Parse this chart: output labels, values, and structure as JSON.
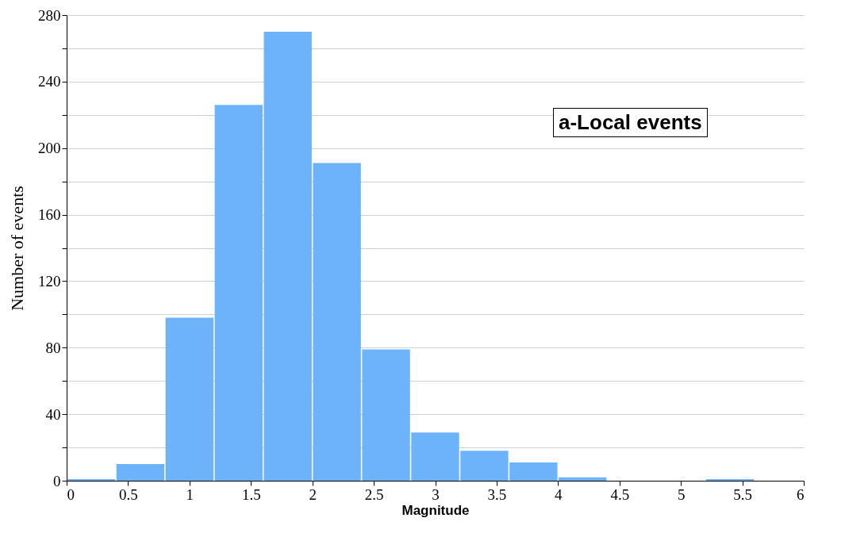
{
  "chart_data": {
    "type": "histogram",
    "xlabel": "Magnitude",
    "ylabel": "Number of events",
    "annotations": [
      "a-Local events"
    ],
    "bins": [
      0,
      0.4,
      0.8,
      1.2,
      1.6,
      2.0,
      2.4,
      2.8,
      3.2,
      3.6,
      4.0,
      4.4,
      4.8,
      5.2,
      5.6,
      6.0
    ],
    "values": [
      1,
      10,
      98,
      226,
      270,
      191,
      79,
      29,
      18,
      11,
      2,
      0,
      0,
      1,
      0
    ],
    "color": "#6db3fb",
    "xlim": [
      0,
      6
    ],
    "xticks": [
      0,
      0.5,
      1,
      1.5,
      2,
      2.5,
      3,
      3.5,
      4,
      4.5,
      5,
      5.5,
      6
    ],
    "ylim": [
      0,
      280
    ],
    "yticks": [
      0,
      {
        "value": 20,
        "label": null
      },
      40,
      {
        "value": 60,
        "label": null
      },
      80,
      {
        "value": 100,
        "label": null
      },
      120,
      {
        "value": 140,
        "label": null
      },
      160,
      {
        "value": 180,
        "label": null
      },
      200,
      {
        "value": 220,
        "label": null
      },
      240,
      {
        "value": 260,
        "label": null
      },
      280
    ],
    "grid": "y"
  }
}
